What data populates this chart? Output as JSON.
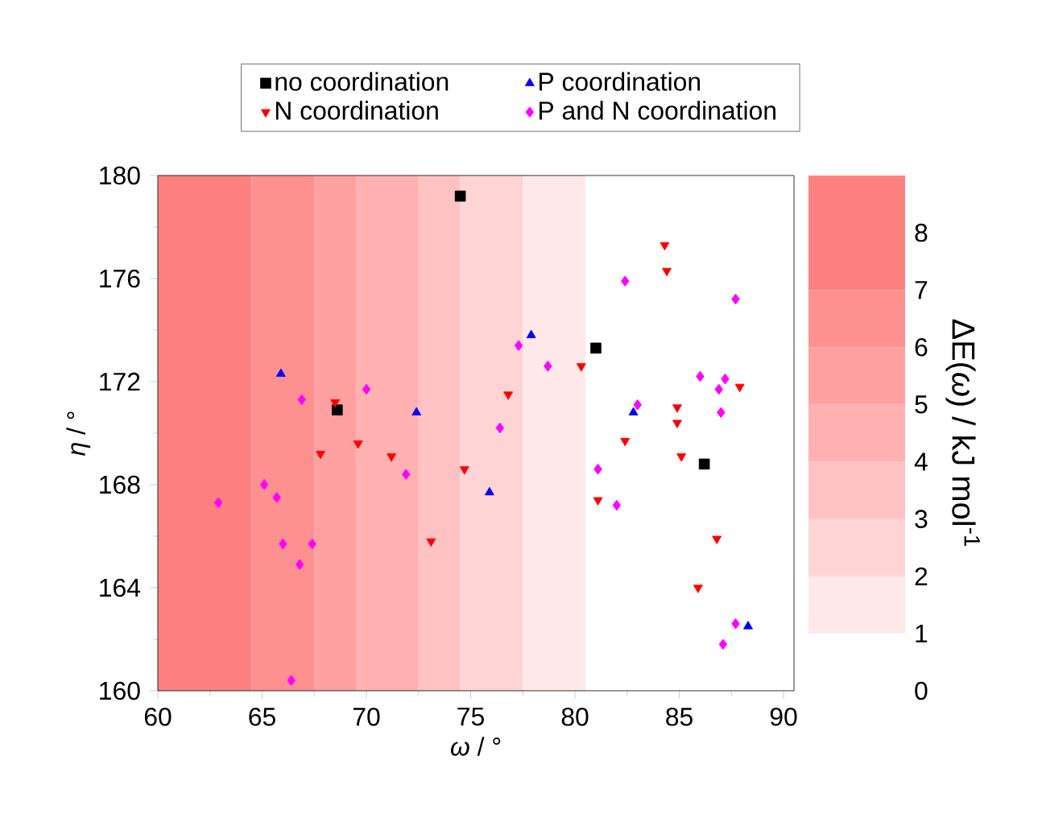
{
  "chart_data": {
    "type": "scatter",
    "xlabel": "*ω* / °",
    "ylabel": "*η* / °",
    "clabel": "ΔE(*ω*) / kJ mol$^{-1}$",
    "xlim": [
      60,
      90.5
    ],
    "ylim": [
      160,
      180
    ],
    "xticks": [
      60,
      65,
      70,
      75,
      80,
      85,
      90
    ],
    "yticks": [
      160,
      164,
      168,
      172,
      176,
      180
    ],
    "clim": [
      0,
      9
    ],
    "cticks": [
      0,
      1,
      2,
      3,
      4,
      5,
      6,
      7,
      8
    ],
    "bands": [
      {
        "axis": "x",
        "from": 60,
        "to": 64.5,
        "color": "#ff8080"
      },
      {
        "axis": "x",
        "from": 64.5,
        "to": 67.5,
        "color": "#ff9090"
      },
      {
        "axis": "x",
        "from": 67.5,
        "to": 69.5,
        "color": "#ffa0a0"
      },
      {
        "axis": "x",
        "from": 69.5,
        "to": 72.5,
        "color": "#ffb0b0"
      },
      {
        "axis": "x",
        "from": 72.5,
        "to": 74.5,
        "color": "#ffc2c2"
      },
      {
        "axis": "x",
        "from": 74.5,
        "to": 77.5,
        "color": "#ffd4d4"
      },
      {
        "axis": "x",
        "from": 77.5,
        "to": 80.5,
        "color": "#ffe8e8"
      }
    ],
    "legend": "top",
    "series": [
      {
        "name": "no coordination",
        "color": "#000000",
        "marker": "square",
        "x": [
          74.5,
          68.6,
          81.0,
          86.2
        ],
        "values": [
          179.2,
          170.9,
          173.3,
          168.8
        ]
      },
      {
        "name": "P coordination",
        "color": "#0000ff",
        "marker": "triangle",
        "x": [
          65.9,
          72.4,
          75.9,
          77.9,
          82.8,
          88.3
        ],
        "values": [
          172.3,
          170.8,
          167.7,
          173.8,
          170.8,
          162.5
        ]
      },
      {
        "name": "N coordination",
        "color": "#ff0000",
        "marker": "triangle-down",
        "x": [
          68.5,
          67.8,
          69.6,
          71.2,
          74.7,
          73.1,
          76.8,
          80.3,
          84.3,
          84.4,
          87.9,
          84.9,
          84.9,
          82.4,
          85.1,
          81.1,
          86.8,
          85.9
        ],
        "values": [
          171.2,
          169.2,
          169.6,
          169.1,
          168.6,
          165.8,
          171.5,
          172.6,
          177.3,
          176.3,
          171.8,
          171.0,
          170.4,
          169.7,
          169.1,
          167.4,
          165.9,
          164.0
        ]
      },
      {
        "name": "P and N coordination",
        "color": "#ff00ff",
        "marker": "diamond",
        "x": [
          66.9,
          70.0,
          71.9,
          65.1,
          65.7,
          62.9,
          66.0,
          67.4,
          66.8,
          66.4,
          77.3,
          76.4,
          78.7,
          82.4,
          87.7,
          86.0,
          87.2,
          86.9,
          83.0,
          87.0,
          81.1,
          82.0,
          87.7,
          87.1
        ],
        "values": [
          171.3,
          171.7,
          168.4,
          168.0,
          167.5,
          167.3,
          165.7,
          165.7,
          164.9,
          160.4,
          173.4,
          170.2,
          172.6,
          175.9,
          175.2,
          172.2,
          172.1,
          171.7,
          171.1,
          170.8,
          168.6,
          167.2,
          162.6,
          161.8
        ]
      }
    ]
  }
}
